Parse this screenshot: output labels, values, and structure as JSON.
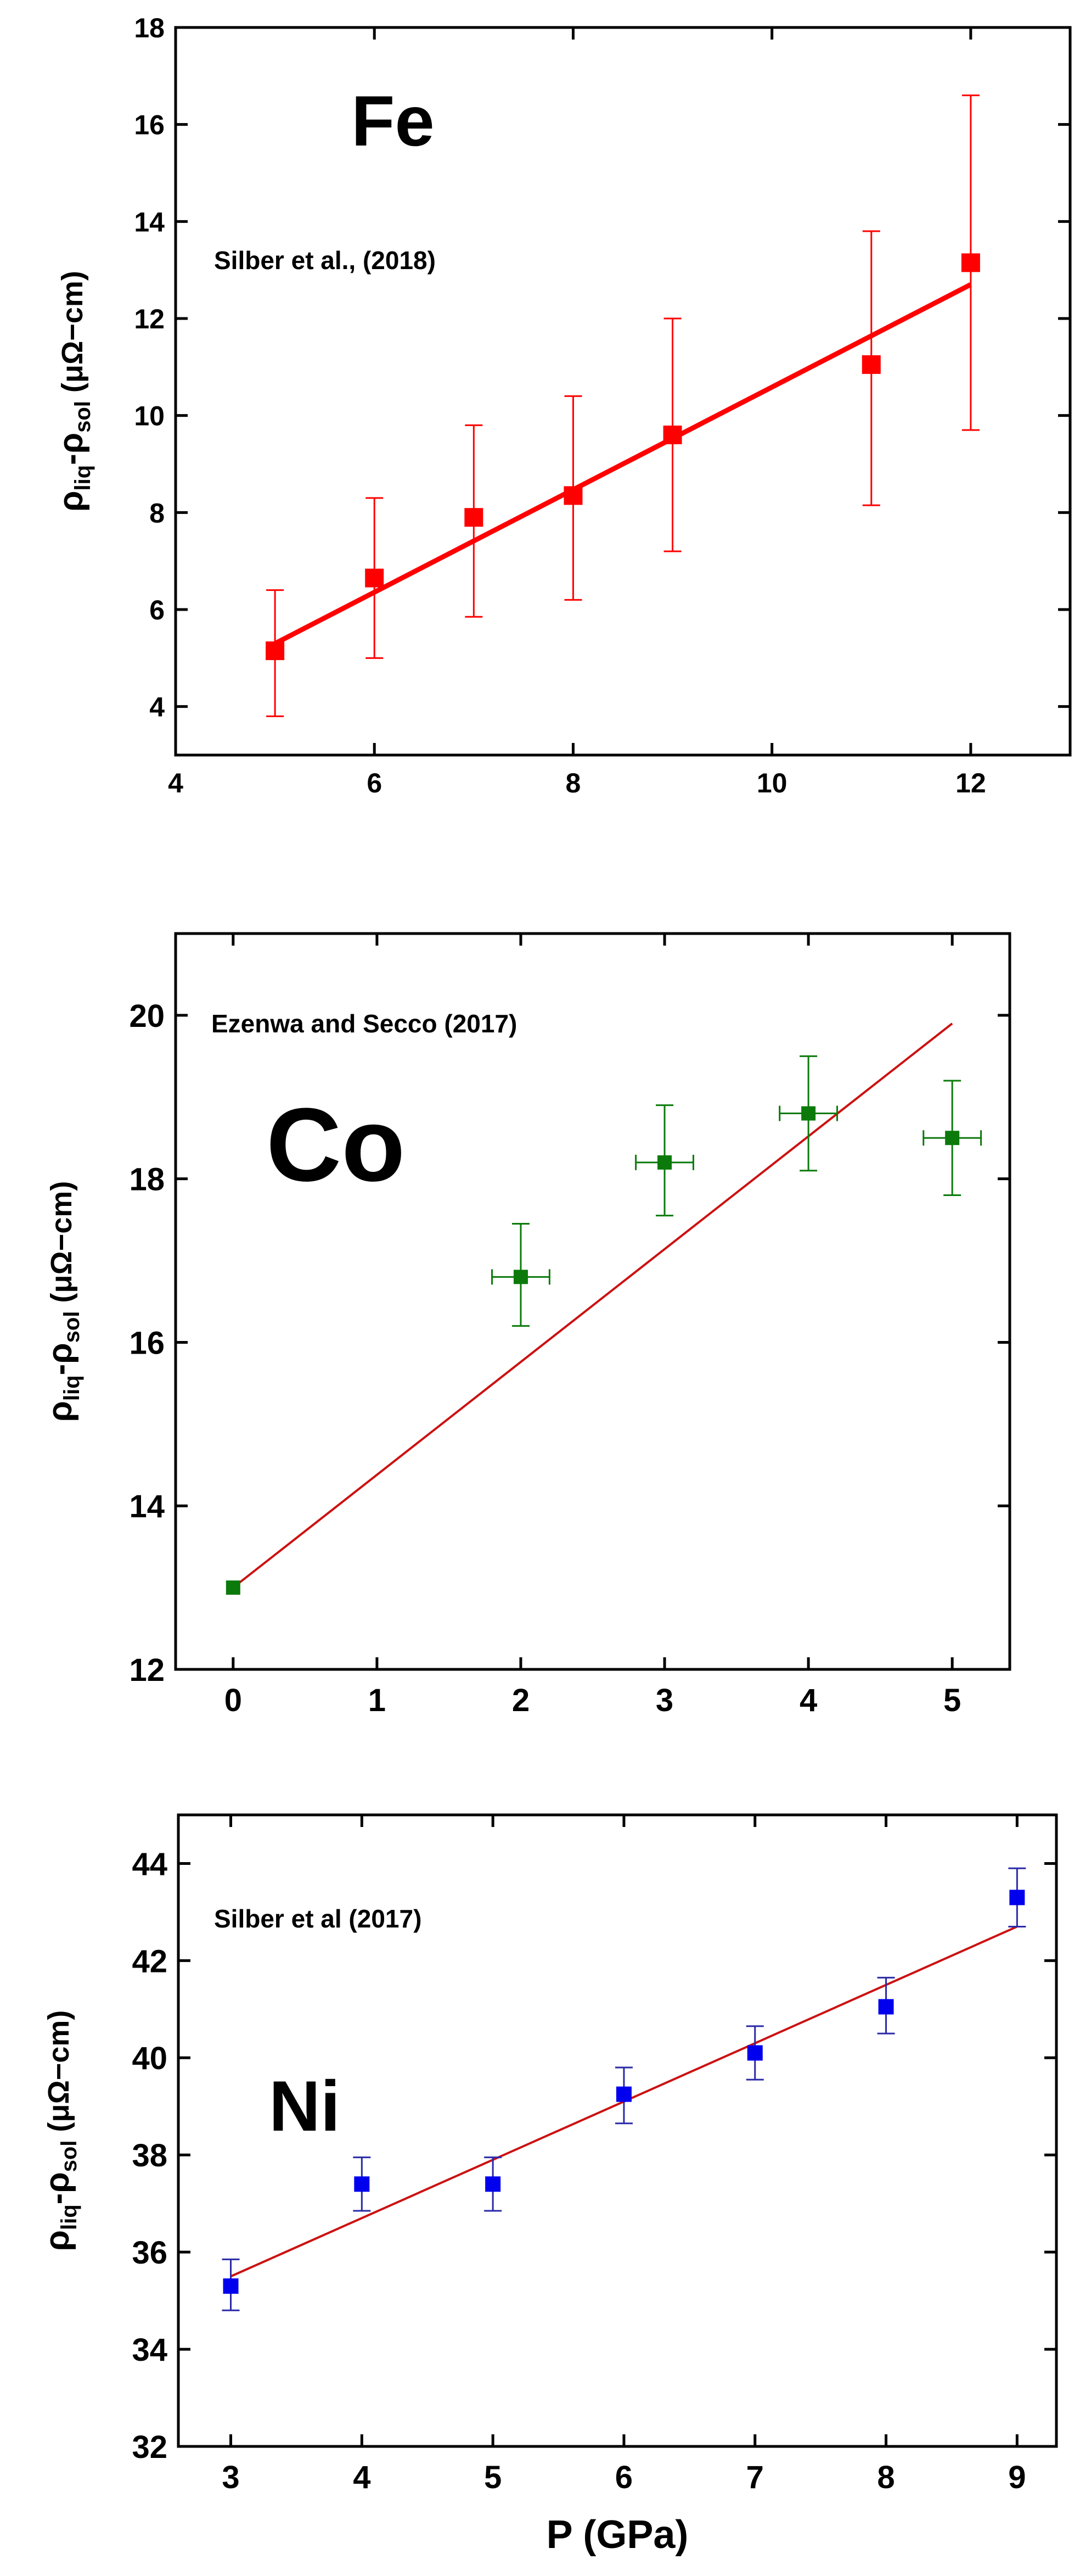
{
  "chart_data": [
    {
      "type": "scatter",
      "element": "Fe",
      "annotation": "Silber et al., (2018)",
      "xlabel": "",
      "ylabel": {
        "main": "ρ",
        "sub1": "liq",
        "mid": "-ρ",
        "sub2": "sol",
        "unit": " (μΩ−cm)"
      },
      "xlim": [
        4,
        13
      ],
      "ylim": [
        3,
        18
      ],
      "xticks": [
        4,
        6,
        8,
        10,
        12
      ],
      "yticks": [
        4,
        6,
        8,
        10,
        12,
        14,
        16,
        18
      ],
      "marker_color": "#ff0000",
      "line_color": "#ff0000",
      "points": [
        {
          "x": 5,
          "y": 5.15,
          "y_lo": 3.8,
          "y_hi": 6.4
        },
        {
          "x": 6,
          "y": 6.65,
          "y_lo": 5.0,
          "y_hi": 8.3
        },
        {
          "x": 7,
          "y": 7.9,
          "y_lo": 5.85,
          "y_hi": 9.8
        },
        {
          "x": 8,
          "y": 8.35,
          "y_lo": 6.2,
          "y_hi": 10.4
        },
        {
          "x": 9,
          "y": 9.6,
          "y_lo": 7.2,
          "y_hi": 12.0
        },
        {
          "x": 11,
          "y": 11.05,
          "y_lo": 8.15,
          "y_hi": 13.8
        },
        {
          "x": 12,
          "y": 13.15,
          "y_lo": 9.7,
          "y_hi": 16.6
        }
      ],
      "fit": {
        "x0": 5,
        "y0": 5.3,
        "x1": 12,
        "y1": 12.7
      }
    },
    {
      "type": "scatter",
      "element": "Co",
      "annotation": "Ezenwa and Secco (2017)",
      "xlabel": "",
      "ylabel": {
        "main": "ρ",
        "sub1": "liq",
        "mid": "-ρ",
        "sub2": "sol",
        "unit": " (μΩ−cm)"
      },
      "xlim": [
        -0.4,
        5.4
      ],
      "ylim": [
        12,
        21
      ],
      "xticks": [
        0,
        1,
        2,
        3,
        4,
        5
      ],
      "yticks": [
        12,
        14,
        16,
        18,
        20
      ],
      "marker_color": "#0b7a0b",
      "line_color": "#cc1111",
      "points": [
        {
          "x": 0,
          "y": 13.0
        },
        {
          "x": 2,
          "y": 16.8,
          "y_lo": 16.2,
          "y_hi": 17.45,
          "x_err": 0.2
        },
        {
          "x": 3,
          "y": 18.2,
          "y_lo": 17.55,
          "y_hi": 18.9,
          "x_err": 0.2
        },
        {
          "x": 4,
          "y": 18.8,
          "y_lo": 18.1,
          "y_hi": 19.5,
          "x_err": 0.2
        },
        {
          "x": 5,
          "y": 18.5,
          "y_lo": 17.8,
          "y_hi": 19.2,
          "x_err": 0.2
        }
      ],
      "fit": {
        "x0": 0,
        "y0": 13.0,
        "x1": 5,
        "y1": 19.9
      }
    },
    {
      "type": "scatter",
      "element": "Ni",
      "annotation": "Silber et al (2017)",
      "xlabel": "P (GPa)",
      "ylabel": {
        "main": "ρ",
        "sub1": "liq",
        "mid": "-ρ",
        "sub2": "sol",
        "unit": " (μΩ−cm)"
      },
      "xlim": [
        2.6,
        9.3
      ],
      "ylim": [
        32,
        45
      ],
      "xticks": [
        3,
        4,
        5,
        6,
        7,
        8,
        9
      ],
      "yticks": [
        32,
        34,
        36,
        38,
        40,
        42,
        44
      ],
      "marker_color": "#0000ee",
      "line_color": "#cc1111",
      "points": [
        {
          "x": 3,
          "y": 35.3,
          "y_lo": 34.8,
          "y_hi": 35.85
        },
        {
          "x": 4,
          "y": 37.4,
          "y_lo": 36.85,
          "y_hi": 37.95
        },
        {
          "x": 5,
          "y": 37.4,
          "y_lo": 36.85,
          "y_hi": 37.95
        },
        {
          "x": 6,
          "y": 39.25,
          "y_lo": 38.65,
          "y_hi": 39.8
        },
        {
          "x": 7,
          "y": 40.1,
          "y_lo": 39.55,
          "y_hi": 40.65
        },
        {
          "x": 8,
          "y": 41.05,
          "y_lo": 40.5,
          "y_hi": 41.65
        },
        {
          "x": 9,
          "y": 43.3,
          "y_lo": 42.7,
          "y_hi": 43.9
        }
      ],
      "fit": {
        "x0": 3,
        "y0": 35.5,
        "x1": 9,
        "y1": 42.7
      }
    }
  ]
}
